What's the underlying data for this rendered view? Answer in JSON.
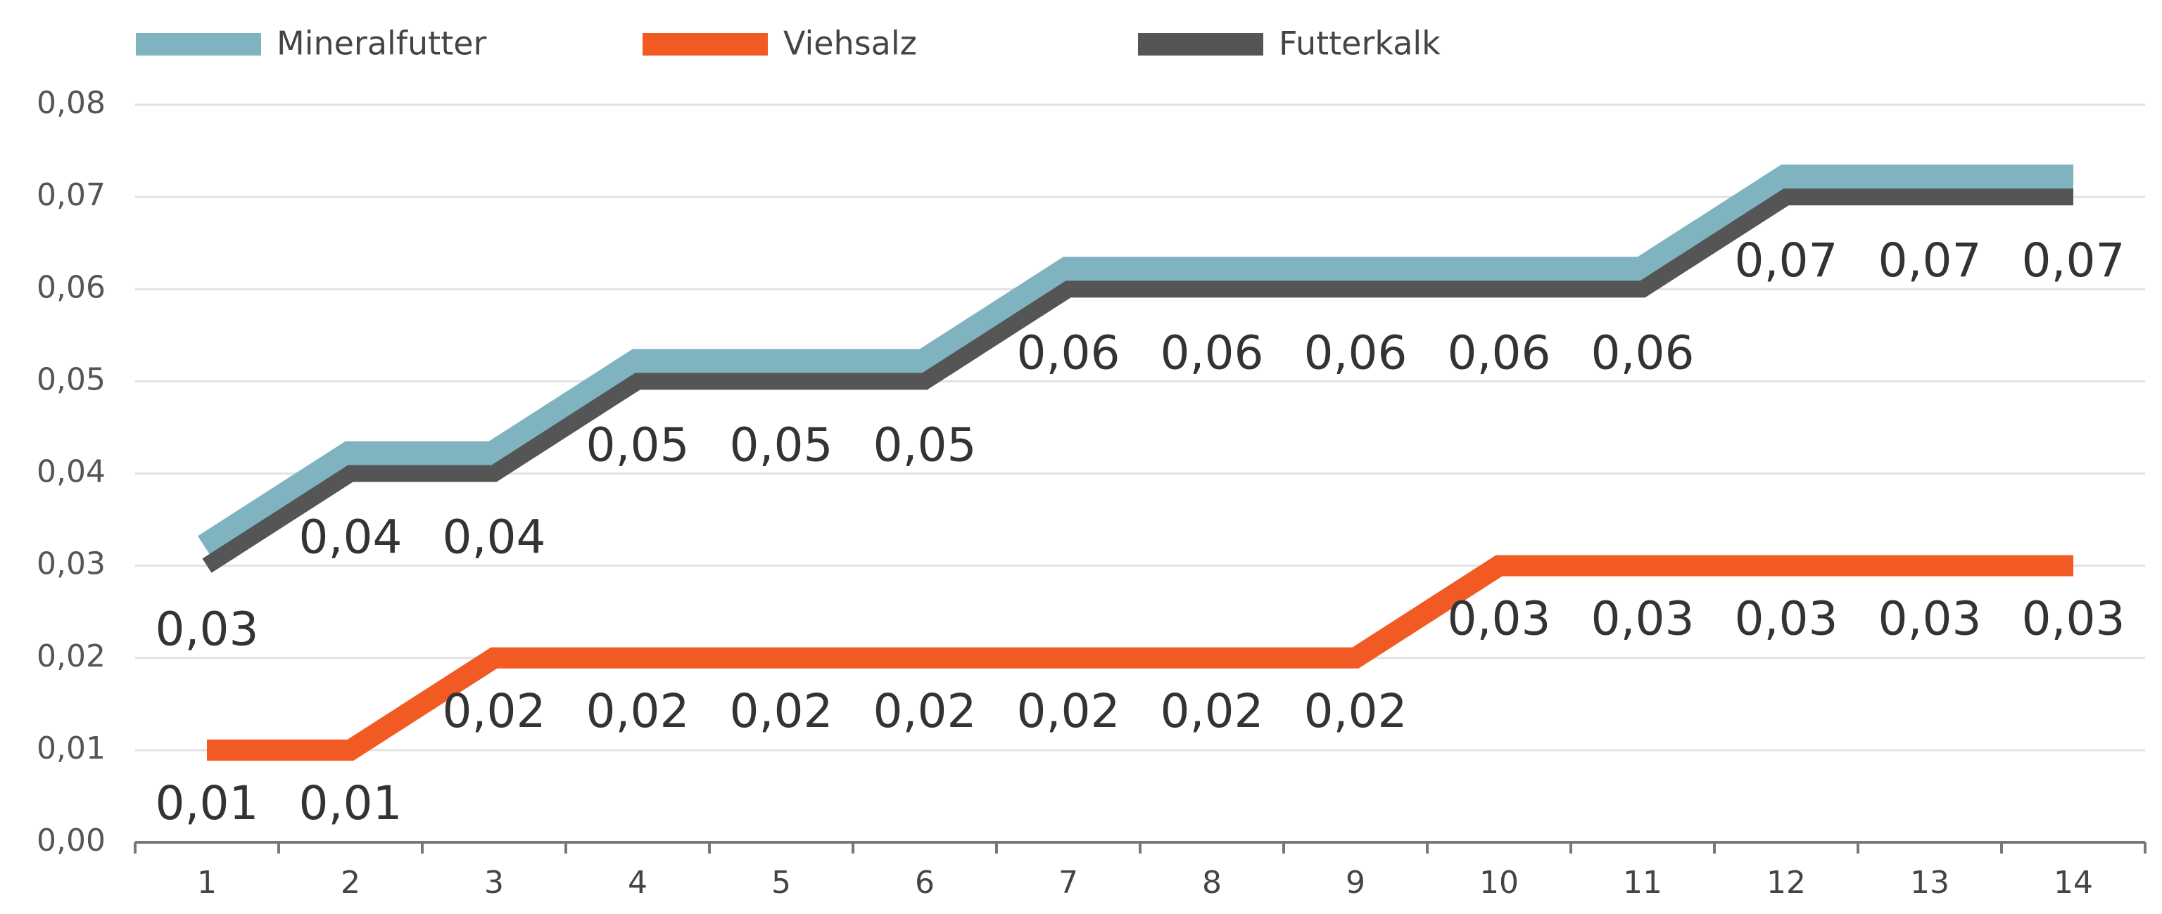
{
  "chart_data": {
    "type": "line",
    "categories": [
      "1",
      "2",
      "3",
      "4",
      "5",
      "6",
      "7",
      "8",
      "9",
      "10",
      "11",
      "12",
      "13",
      "14"
    ],
    "series": [
      {
        "name": "Mineralfutter",
        "color": "#7fb3c0",
        "values": [
          0.03,
          0.04,
          0.04,
          0.05,
          0.05,
          0.05,
          0.06,
          0.06,
          0.06,
          0.06,
          0.06,
          0.07,
          0.07,
          0.07
        ]
      },
      {
        "name": "Viehsalz",
        "color": "#f15a22",
        "values": [
          0.01,
          0.01,
          0.02,
          0.02,
          0.02,
          0.02,
          0.02,
          0.02,
          0.02,
          0.03,
          0.03,
          0.03,
          0.03,
          0.03
        ],
        "value_labels": [
          "0,01",
          "0,01",
          "0,02",
          "0,02",
          "0,02",
          "0,02",
          "0,02",
          "0,02",
          "0,02",
          "0,03",
          "0,03",
          "0,03",
          "0,03",
          "0,03"
        ]
      },
      {
        "name": "Futterkalk",
        "color": "#555555",
        "values": [
          0.03,
          0.04,
          0.04,
          0.05,
          0.05,
          0.05,
          0.06,
          0.06,
          0.06,
          0.06,
          0.06,
          0.07,
          0.07,
          0.07
        ],
        "value_labels": [
          "0,03",
          "0,04",
          "0,04",
          "0,05",
          "0,05",
          "0,05",
          "0,06",
          "0,06",
          "0,06",
          "0,06",
          "0,06",
          "0,07",
          "0,07",
          "0,07"
        ]
      }
    ],
    "ylim": [
      0,
      0.08
    ],
    "yticks": [
      {
        "value": 0,
        "label": "0,00"
      },
      {
        "value": 0.01,
        "label": "0,01"
      },
      {
        "value": 0.02,
        "label": "0,02"
      },
      {
        "value": 0.03,
        "label": "0,03"
      },
      {
        "value": 0.04,
        "label": "0,04"
      },
      {
        "value": 0.05,
        "label": "0,05"
      },
      {
        "value": 0.06,
        "label": "0,06"
      },
      {
        "value": 0.07,
        "label": "0,07"
      },
      {
        "value": 0.08,
        "label": "0,08"
      }
    ],
    "grid": true,
    "legend": "top"
  }
}
